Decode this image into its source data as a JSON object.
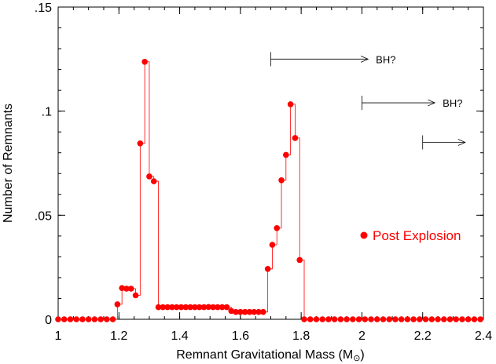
{
  "chart_data": {
    "type": "scatter",
    "xlabel": "Remnant Gravitational Mass (M",
    "xlabel_suffix": ")",
    "ylabel": "Number of Remnants",
    "xlim": [
      1.0,
      2.4
    ],
    "ylim": [
      0,
      0.15
    ],
    "x_ticks": [
      1.0,
      1.2,
      1.4,
      1.6,
      1.8,
      2.0,
      2.2,
      2.4
    ],
    "x_tick_labels": [
      "1",
      "1.2",
      "1.4",
      "1.6",
      "1.8",
      "2",
      "2.2",
      "2.4"
    ],
    "y_ticks": [
      0,
      0.05,
      0.1,
      0.15
    ],
    "y_tick_labels": [
      "0",
      ".05",
      ".1",
      ".15"
    ],
    "color": "#ff0000",
    "legend": {
      "label": "Post Explosion",
      "position": "right-middle"
    },
    "annotations": [
      {
        "text": "BH?",
        "x_start": 1.7,
        "x_end": 2.02,
        "y": 0.125
      },
      {
        "text": "BH?",
        "x_start": 2.0,
        "x_end": 2.24,
        "y": 0.104
      },
      {
        "text": "",
        "x_start": 2.2,
        "x_end": 2.34,
        "y": 0.085
      }
    ],
    "series": [
      {
        "name": "Post Explosion",
        "x": [
          1.0,
          1.02,
          1.04,
          1.06,
          1.08,
          1.1,
          1.12,
          1.14,
          1.16,
          1.18,
          1.195,
          1.21,
          1.225,
          1.24,
          1.255,
          1.27,
          1.285,
          1.3,
          1.315,
          1.33,
          1.345,
          1.36,
          1.375,
          1.39,
          1.405,
          1.42,
          1.435,
          1.45,
          1.465,
          1.48,
          1.495,
          1.51,
          1.525,
          1.54,
          1.555,
          1.57,
          1.585,
          1.6,
          1.615,
          1.63,
          1.645,
          1.66,
          1.675,
          1.69,
          1.705,
          1.72,
          1.735,
          1.75,
          1.765,
          1.78,
          1.795,
          1.81,
          1.83,
          1.85,
          1.87,
          1.89,
          1.91,
          1.93,
          1.95,
          1.97,
          1.99,
          2.01,
          2.03,
          2.05,
          2.07,
          2.09,
          2.11,
          2.13,
          2.15,
          2.17,
          2.19,
          2.21,
          2.23,
          2.25,
          2.27,
          2.29,
          2.31,
          2.33,
          2.35,
          2.37,
          2.39
        ],
        "y": [
          0,
          0,
          0,
          0,
          0,
          0,
          0,
          0,
          0,
          0,
          0.0072,
          0.015,
          0.0147,
          0.0147,
          0.0115,
          0.0845,
          0.1237,
          0.0686,
          0.0663,
          0.0058,
          0.0058,
          0.0058,
          0.0058,
          0.0058,
          0.0058,
          0.0058,
          0.0058,
          0.0058,
          0.0058,
          0.0058,
          0.0059,
          0.0058,
          0.0058,
          0.0058,
          0.0058,
          0.004,
          0.0035,
          0.0035,
          0.0035,
          0.0035,
          0.0035,
          0.0035,
          0.0035,
          0.0242,
          0.0358,
          0.0438,
          0.0668,
          0.079,
          0.1033,
          0.0871,
          0.0285,
          0,
          0,
          0,
          0,
          0,
          0,
          0,
          0,
          0,
          0,
          0,
          0,
          0,
          0,
          0,
          0,
          0,
          0,
          0,
          0,
          0,
          0,
          0,
          0,
          0,
          0,
          0,
          0,
          0,
          0
        ]
      }
    ]
  }
}
